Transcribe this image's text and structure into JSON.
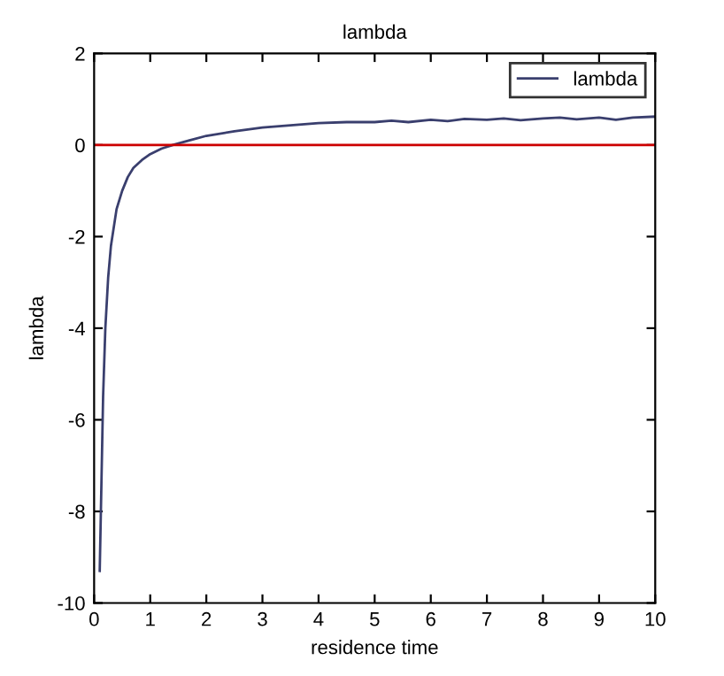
{
  "chart_data": {
    "type": "line",
    "title": "lambda",
    "xlabel": "residence time",
    "ylabel": "lambda",
    "series": [
      {
        "name": "lambda",
        "color": "#3a3f6e",
        "x": [
          0.1,
          0.13,
          0.16,
          0.2,
          0.25,
          0.3,
          0.4,
          0.5,
          0.6,
          0.7,
          0.85,
          1.0,
          1.2,
          1.4,
          1.7,
          2.0,
          2.5,
          3.0,
          3.5,
          4.0,
          4.5,
          5.0,
          5.3,
          5.6,
          6.0,
          6.3,
          6.6,
          7.0,
          7.3,
          7.6,
          8.0,
          8.3,
          8.6,
          9.0,
          9.3,
          9.6,
          10.0
        ],
        "values": [
          -9.3,
          -7.4,
          -5.5,
          -4.0,
          -2.9,
          -2.2,
          -1.4,
          -1.0,
          -0.7,
          -0.5,
          -0.33,
          -0.2,
          -0.08,
          0.0,
          0.1,
          0.2,
          0.3,
          0.38,
          0.43,
          0.48,
          0.5,
          0.5,
          0.53,
          0.5,
          0.55,
          0.52,
          0.57,
          0.55,
          0.58,
          0.54,
          0.58,
          0.6,
          0.56,
          0.6,
          0.55,
          0.6,
          0.62
        ]
      }
    ],
    "ref_lines": [
      {
        "axis": "y",
        "value": 0,
        "color": "#cc0000"
      }
    ],
    "xlim": [
      0,
      10
    ],
    "ylim": [
      -10,
      2
    ],
    "xticks": [
      0,
      1,
      2,
      3,
      4,
      5,
      6,
      7,
      8,
      9,
      10
    ],
    "yticks": [
      -10,
      -8,
      -6,
      -4,
      -2,
      0,
      2
    ],
    "grid": false,
    "legend": "top right"
  }
}
